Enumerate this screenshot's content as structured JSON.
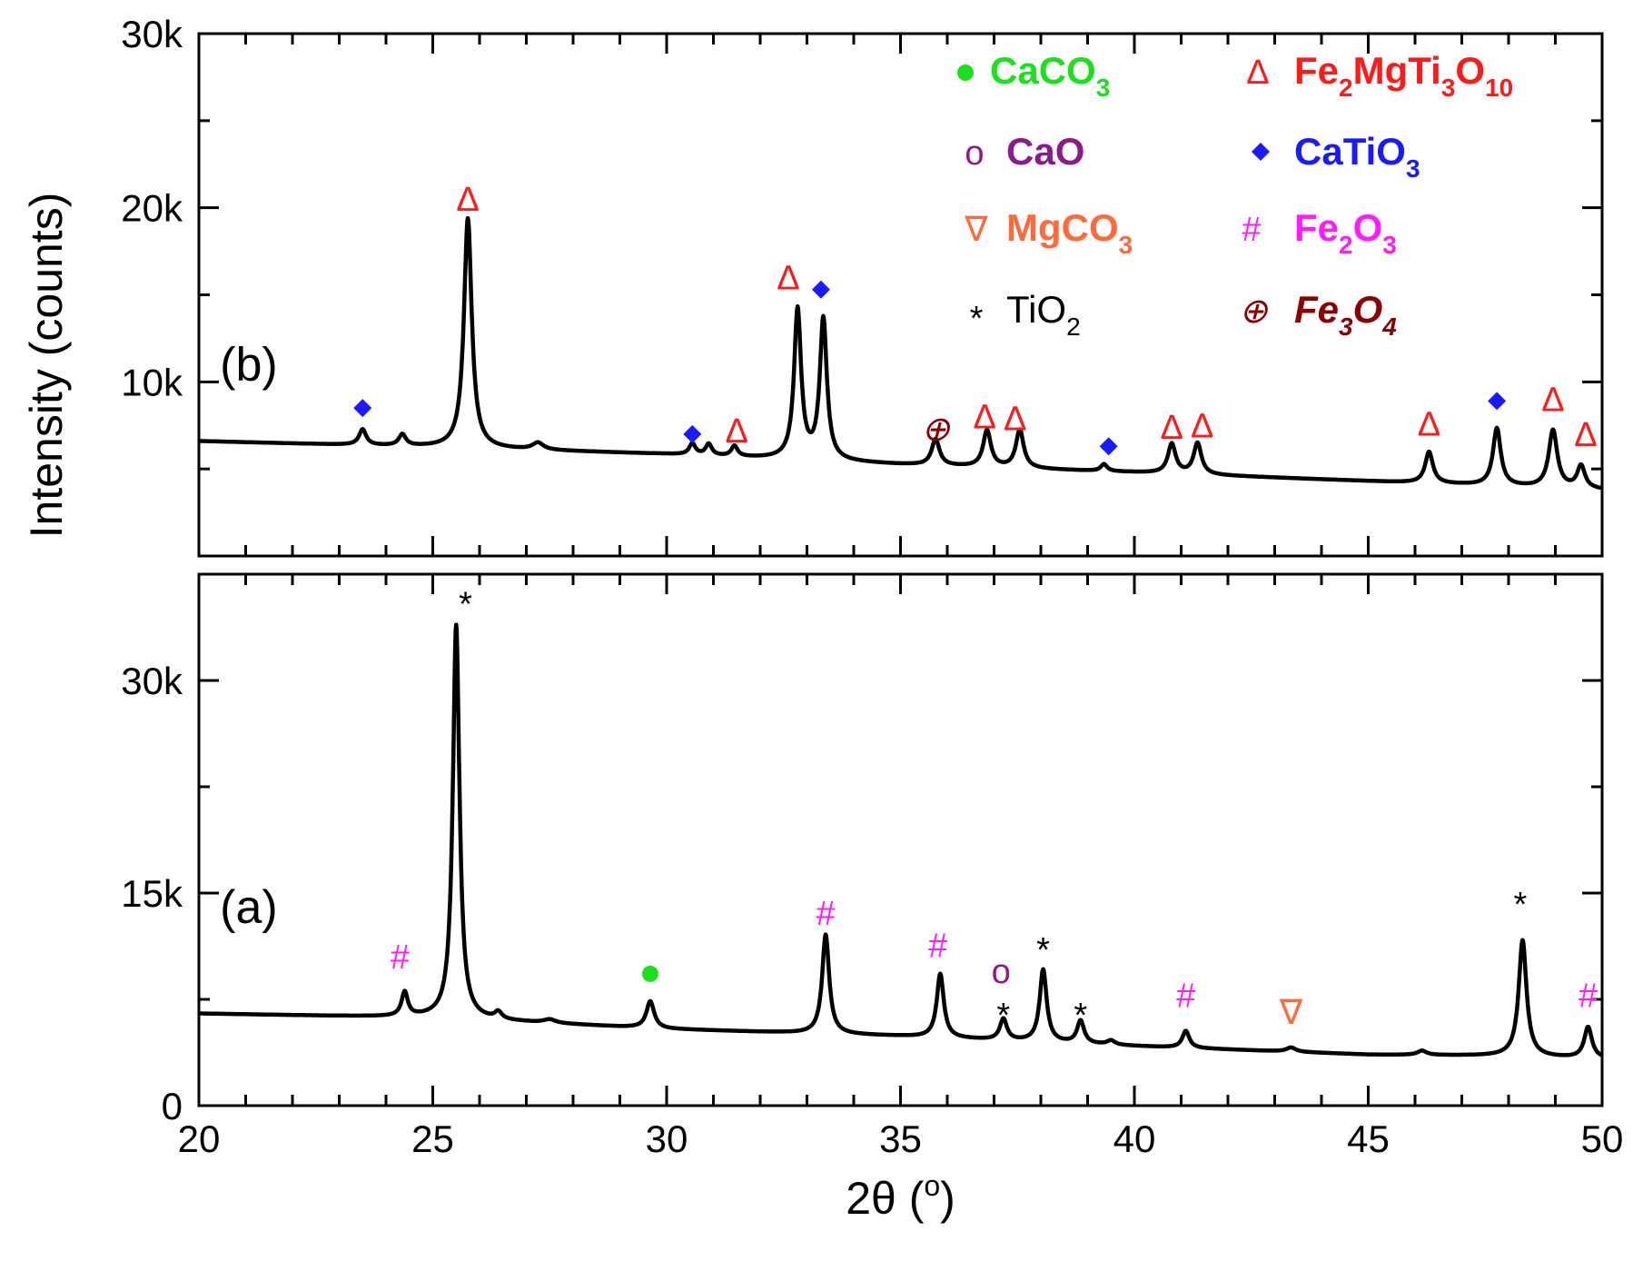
{
  "chart_data": {
    "type": "line",
    "title": "",
    "xlabel": "2θ (°)",
    "xlabel_parts": {
      "main": "2θ (",
      "sup": "o",
      "end": ")"
    },
    "ylabel": "Intensity (counts)",
    "xlim": [
      20,
      50
    ],
    "x_ticks": [
      20,
      25,
      30,
      35,
      40,
      45,
      50
    ],
    "x_tick_labels": [
      "20",
      "25",
      "30",
      "35",
      "40",
      "45",
      "50"
    ],
    "panels": [
      {
        "id": "b",
        "label": "(b)",
        "ylim": [
          0,
          30000
        ],
        "y_ticks": [
          10000,
          20000,
          30000
        ],
        "y_tick_labels": [
          "10k",
          "20k",
          "30k"
        ],
        "baseline": [
          [
            20,
            6600
          ],
          [
            25,
            6250
          ],
          [
            30,
            5850
          ],
          [
            35,
            5250
          ],
          [
            40,
            4800
          ],
          [
            45,
            4300
          ],
          [
            48,
            4000
          ],
          [
            50,
            3800
          ]
        ],
        "peaks": [
          {
            "x": 23.5,
            "h": 900,
            "w": 0.09
          },
          {
            "x": 24.35,
            "h": 650,
            "w": 0.09
          },
          {
            "x": 25.75,
            "h": 13200,
            "w": 0.1
          },
          {
            "x": 27.25,
            "h": 400,
            "w": 0.14
          },
          {
            "x": 30.55,
            "h": 650,
            "w": 0.08
          },
          {
            "x": 30.9,
            "h": 650,
            "w": 0.08
          },
          {
            "x": 31.45,
            "h": 600,
            "w": 0.08
          },
          {
            "x": 32.8,
            "h": 8600,
            "w": 0.09
          },
          {
            "x": 33.35,
            "h": 8100,
            "w": 0.09
          },
          {
            "x": 35.75,
            "h": 1500,
            "w": 0.1
          },
          {
            "x": 36.85,
            "h": 2100,
            "w": 0.1
          },
          {
            "x": 37.55,
            "h": 2200,
            "w": 0.1
          },
          {
            "x": 39.35,
            "h": 400,
            "w": 0.08
          },
          {
            "x": 40.8,
            "h": 1700,
            "w": 0.1
          },
          {
            "x": 41.35,
            "h": 1800,
            "w": 0.1
          },
          {
            "x": 46.3,
            "h": 1800,
            "w": 0.1
          },
          {
            "x": 47.75,
            "h": 3300,
            "w": 0.1
          },
          {
            "x": 48.95,
            "h": 3300,
            "w": 0.11
          },
          {
            "x": 49.55,
            "h": 1300,
            "w": 0.1
          }
        ],
        "markers": [
          {
            "x": 23.5,
            "y": 8500,
            "symbol": "diamond",
            "phase": "CaTiO3"
          },
          {
            "x": 25.75,
            "y": 20500,
            "symbol": "Δ",
            "phase": "Fe2MgTi3O10"
          },
          {
            "x": 30.55,
            "y": 7000,
            "symbol": "diamond",
            "phase": "CaTiO3"
          },
          {
            "x": 31.5,
            "y": 7200,
            "symbol": "Δ",
            "phase": "Fe2MgTi3O10"
          },
          {
            "x": 32.6,
            "y": 16000,
            "symbol": "Δ",
            "phase": "Fe2MgTi3O10"
          },
          {
            "x": 33.3,
            "y": 15300,
            "symbol": "diamond",
            "phase": "CaTiO3"
          },
          {
            "x": 35.75,
            "y": 7300,
            "symbol": "⊕",
            "phase": "Fe3O4"
          },
          {
            "x": 36.8,
            "y": 8000,
            "symbol": "Δ",
            "phase": "Fe2MgTi3O10"
          },
          {
            "x": 37.45,
            "y": 7900,
            "symbol": "Δ",
            "phase": "Fe2MgTi3O10"
          },
          {
            "x": 39.45,
            "y": 6300,
            "symbol": "diamond",
            "phase": "CaTiO3"
          },
          {
            "x": 40.8,
            "y": 7400,
            "symbol": "Δ",
            "phase": "Fe2MgTi3O10"
          },
          {
            "x": 41.45,
            "y": 7500,
            "symbol": "Δ",
            "phase": "Fe2MgTi3O10"
          },
          {
            "x": 46.3,
            "y": 7600,
            "symbol": "Δ",
            "phase": "Fe2MgTi3O10"
          },
          {
            "x": 47.75,
            "y": 8900,
            "symbol": "diamond",
            "phase": "CaTiO3"
          },
          {
            "x": 48.95,
            "y": 9000,
            "symbol": "Δ",
            "phase": "Fe2MgTi3O10"
          },
          {
            "x": 49.65,
            "y": 7000,
            "symbol": "Δ",
            "phase": "Fe2MgTi3O10"
          }
        ]
      },
      {
        "id": "a",
        "label": "(a)",
        "ylim": [
          0,
          37500
        ],
        "y_ticks": [
          0,
          15000,
          30000
        ],
        "y_tick_labels": [
          "0",
          "15k",
          "30k"
        ],
        "baseline": [
          [
            20,
            6500
          ],
          [
            25,
            6200
          ],
          [
            30,
            5400
          ],
          [
            35,
            4900
          ],
          [
            40,
            4200
          ],
          [
            45,
            3600
          ],
          [
            48,
            3500
          ],
          [
            50,
            3300
          ]
        ],
        "peaks": [
          {
            "x": 24.4,
            "h": 1700,
            "w": 0.08
          },
          {
            "x": 25.5,
            "h": 27800,
            "w": 0.085
          },
          {
            "x": 26.4,
            "h": 500,
            "w": 0.09
          },
          {
            "x": 27.5,
            "h": 250,
            "w": 0.15
          },
          {
            "x": 29.65,
            "h": 1900,
            "w": 0.1
          },
          {
            "x": 33.4,
            "h": 7000,
            "w": 0.09
          },
          {
            "x": 35.85,
            "h": 4500,
            "w": 0.09
          },
          {
            "x": 37.2,
            "h": 1500,
            "w": 0.09
          },
          {
            "x": 38.05,
            "h": 5100,
            "w": 0.09
          },
          {
            "x": 38.85,
            "h": 1600,
            "w": 0.09
          },
          {
            "x": 39.5,
            "h": 300,
            "w": 0.1
          },
          {
            "x": 41.1,
            "h": 1200,
            "w": 0.09
          },
          {
            "x": 43.35,
            "h": 300,
            "w": 0.12
          },
          {
            "x": 46.15,
            "h": 300,
            "w": 0.12
          },
          {
            "x": 48.3,
            "h": 8200,
            "w": 0.1
          },
          {
            "x": 49.7,
            "h": 2200,
            "w": 0.1
          }
        ],
        "markers": [
          {
            "x": 24.3,
            "y": 10500,
            "symbol": "#",
            "phase": "Fe2O3"
          },
          {
            "x": 25.7,
            "y": 36000,
            "symbol": "*",
            "phase": "TiO2"
          },
          {
            "x": 29.65,
            "y": 9300,
            "symbol": "dot",
            "phase": "CaCO3"
          },
          {
            "x": 33.4,
            "y": 13600,
            "symbol": "#",
            "phase": "Fe2O3"
          },
          {
            "x": 35.8,
            "y": 11300,
            "symbol": "#",
            "phase": "Fe2O3"
          },
          {
            "x": 37.15,
            "y": 9500,
            "symbol": "o",
            "phase": "CaO"
          },
          {
            "x": 37.2,
            "y": 7000,
            "symbol": "*",
            "phase": "TiO2"
          },
          {
            "x": 38.05,
            "y": 11600,
            "symbol": "*",
            "phase": "TiO2"
          },
          {
            "x": 38.85,
            "y": 7000,
            "symbol": "*",
            "phase": "TiO2"
          },
          {
            "x": 41.1,
            "y": 7800,
            "symbol": "#",
            "phase": "Fe2O3"
          },
          {
            "x": 43.35,
            "y": 6600,
            "symbol": "∇",
            "phase": "MgCO3"
          },
          {
            "x": 48.25,
            "y": 14800,
            "symbol": "*",
            "phase": "TiO2"
          },
          {
            "x": 49.7,
            "y": 7800,
            "symbol": "#",
            "phase": "Fe2O3"
          }
        ]
      }
    ],
    "legend": {
      "placement": "top-right",
      "entries": [
        {
          "phase": "CaCO3",
          "symbol": "●",
          "parts": [
            [
              "Ca",
              ""
            ],
            [
              "CO",
              ""
            ],
            [
              "3",
              "sub"
            ]
          ],
          "color": "#1be01b",
          "style": "bold"
        },
        {
          "phase": "Fe2MgTi3O10",
          "symbol": "Δ",
          "parts": [
            [
              "Fe",
              ""
            ],
            [
              "2",
              "sub"
            ],
            [
              "MgTi",
              ""
            ],
            [
              "3",
              "sub"
            ],
            [
              "O",
              ""
            ],
            [
              "10",
              "sub"
            ]
          ],
          "color": "#ff1a1a",
          "style": "bold"
        },
        {
          "phase": "CaO",
          "symbol": "o",
          "parts": [
            [
              "CaO",
              ""
            ]
          ],
          "color": "#8b1a8b",
          "style": "bold"
        },
        {
          "phase": "CaTiO3",
          "symbol": "◆",
          "parts": [
            [
              "CaTiO",
              ""
            ],
            [
              "3",
              "sub"
            ]
          ],
          "color": "#1a1aff",
          "style": "bold"
        },
        {
          "phase": "MgCO3",
          "symbol": "∇",
          "parts": [
            [
              "MgCO",
              ""
            ],
            [
              "3",
              "sub"
            ]
          ],
          "color": "#ff6a3d",
          "style": "bold"
        },
        {
          "phase": "Fe2O3",
          "symbol": "#",
          "parts": [
            [
              "Fe",
              ""
            ],
            [
              "2",
              "sub"
            ],
            [
              "O",
              ""
            ],
            [
              "3",
              "sub"
            ]
          ],
          "color": "#ff1aff",
          "style": "bold"
        },
        {
          "phase": "TiO2",
          "symbol": "*",
          "parts": [
            [
              "TiO",
              ""
            ],
            [
              "2",
              "sub"
            ]
          ],
          "color": "#000000",
          "style": "plain"
        },
        {
          "phase": "Fe3O4",
          "symbol": "⊕",
          "parts": [
            [
              "Fe",
              ""
            ],
            [
              "3",
              "sub"
            ],
            [
              "O",
              ""
            ],
            [
              "4",
              "sub"
            ]
          ],
          "color": "#8b0000",
          "style": "bolditalic"
        }
      ]
    },
    "phase_colors": {
      "CaCO3": "#1be01b",
      "Fe2MgTi3O10": "#ff1a1a",
      "CaO": "#8b1a8b",
      "CaTiO3": "#1a1aff",
      "MgCO3": "#ff6a3d",
      "Fe2O3": "#ff1aff",
      "TiO2": "#000000",
      "Fe3O4": "#8b0000"
    }
  }
}
